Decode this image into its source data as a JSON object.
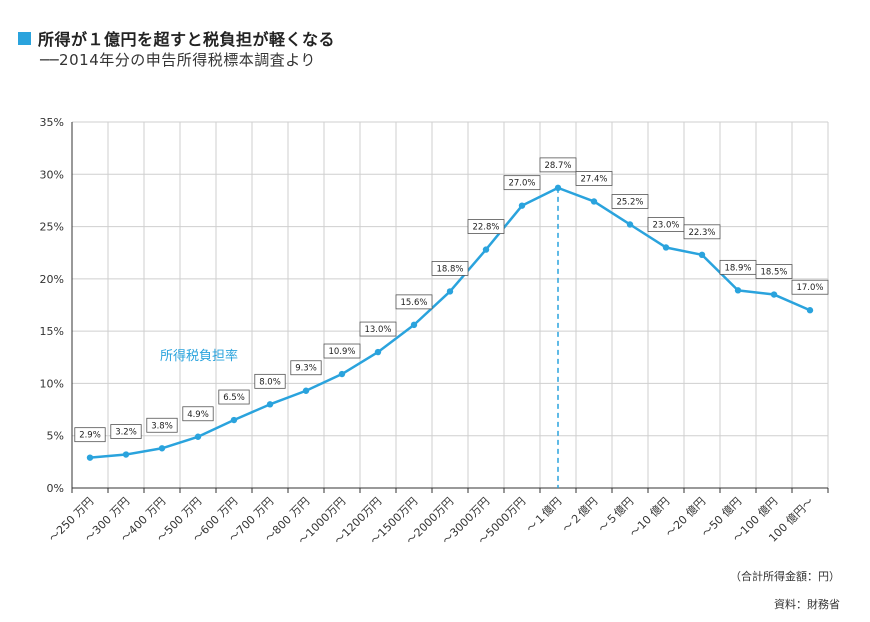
{
  "header": {
    "title": "所得が１億円を超すと税負担が軽くなる",
    "subtitle": "──2014年分の申告所得税標本調査より"
  },
  "notes": {
    "unit": "（合計所得金額：円）",
    "source": "資料：財務省"
  },
  "colors": {
    "accent": "#2aa3dd",
    "grid": "#cfcfcf",
    "axis": "#333333"
  },
  "chart_data": {
    "type": "line",
    "title": "所得が１億円を超すと税負担が軽くなる",
    "xlabel": "",
    "ylabel": "",
    "ylim": [
      0,
      35
    ],
    "yticks": [
      0,
      5,
      10,
      15,
      20,
      25,
      30,
      35
    ],
    "ytick_labels": [
      "0%",
      "5%",
      "10%",
      "15%",
      "20%",
      "25%",
      "30%",
      "35%"
    ],
    "categories": [
      "～250 万円",
      "～300 万円",
      "～400 万円",
      "～500 万円",
      "～600 万円",
      "～700 万円",
      "～800 万円",
      "～1000万円",
      "～1200万円",
      "～1500万円",
      "～2000万円",
      "～3000万円",
      "～5000万円",
      "～１億円",
      "～２億円",
      "～５億円",
      "～10 億円",
      "～20 億円",
      "～50 億円",
      "～100 億円",
      "100 億円～"
    ],
    "series": [
      {
        "name": "所得税負担率",
        "values": [
          2.9,
          3.2,
          3.8,
          4.9,
          6.5,
          8.0,
          9.3,
          10.9,
          13.0,
          15.6,
          18.8,
          22.8,
          27.0,
          28.7,
          27.4,
          25.2,
          23.0,
          22.3,
          18.9,
          18.5,
          17.0
        ],
        "labels": [
          "2.9%",
          "3.2%",
          "3.8%",
          "4.9%",
          "6.5%",
          "8.0%",
          "9.3%",
          "10.9%",
          "13.0%",
          "15.6%",
          "18.8%",
          "22.8%",
          "27.0%",
          "28.7%",
          "27.4%",
          "25.2%",
          "23.0%",
          "22.3%",
          "18.9%",
          "18.5%",
          "17.0%"
        ]
      }
    ],
    "annotations": [
      {
        "type": "vertical-dashed-line",
        "category": "～１億円"
      }
    ],
    "grid": true
  }
}
